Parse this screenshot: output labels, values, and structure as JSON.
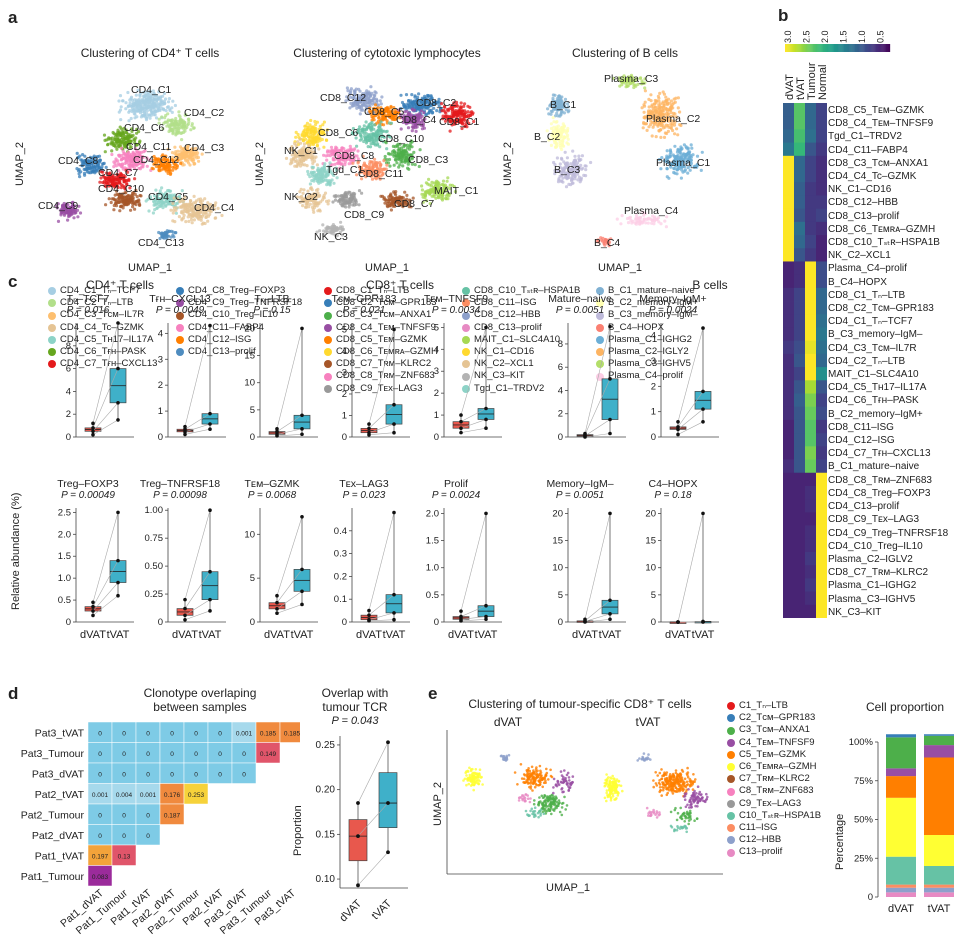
{
  "panels": {
    "a": "a",
    "b": "b",
    "c": "c",
    "d": "d",
    "e": "e"
  },
  "a": {
    "titles": [
      "Clustering of CD4⁺ T cells",
      "Clustering of cytotoxic lymphocytes",
      "Clustering of B cells"
    ],
    "xlabel": "UMAP_1",
    "ylabel": "UMAP_2",
    "cd4_labels": [
      "CD4_C1",
      "CD4_C2",
      "CD4_C6",
      "CD4_C11",
      "CD4_C3",
      "CD4_C8",
      "CD4_C12",
      "CD4_C7",
      "CD4_C10",
      "CD4_C5",
      "CD4_C9",
      "CD4_C4",
      "CD4_C13"
    ],
    "cyto_labels": [
      "CD8_C12",
      "CD8_C2",
      "CD8_C5",
      "CD8_C4",
      "CD8_C1",
      "CD8_C6",
      "CD8_C10",
      "NK_C1",
      "CD8_C8",
      "CD8_C3",
      "Tgd_C1",
      "CD8_C11",
      "NK_C2",
      "CD8_C9",
      "CD8_C7",
      "MAIT_C1",
      "NK_C3"
    ],
    "b_labels": [
      "Plasma_C3",
      "B_C1",
      "B_C2",
      "Plasma_C2",
      "B_C3",
      "Plasma_C1",
      "Plasma_C4",
      "B_C4"
    ],
    "legend_cols": [
      [
        [
          "CD4_C1_Tₙ–TCF7",
          "#a6cee3"
        ],
        [
          "CD4_C2_Tₙ–LTB",
          "#b2df8a"
        ],
        [
          "CD4_C3_Tᴄᴍ–IL7R",
          "#fdbf6f"
        ],
        [
          "CD4_C4_Tc–GZMK",
          "#e5c494"
        ],
        [
          "CD4_C5_Tʜ17–IL17A",
          "#8dd3c7"
        ],
        [
          "CD4_C6_Tғʜ–PASK",
          "#66a61e"
        ],
        [
          "CD4_C7_Tғʜ–CXCL13",
          "#e41a1c"
        ]
      ],
      [
        [
          "CD4_C8_Treg–FOXP3",
          "#377eb8"
        ],
        [
          "CD4_C9_Treg–TNFRSF18",
          "#984ea3"
        ],
        [
          "CD4_C10_Treg–IL10",
          "#a65628"
        ],
        [
          "CD4_C11–FABP4",
          "#f781bf"
        ],
        [
          "CD4_C12–ISG",
          "#ff7f00"
        ],
        [
          "CD4_C13–prolif",
          "#4e8cbf"
        ]
      ],
      [
        [
          "CD8_C1_Tₙ–LTB",
          "#e41a1c"
        ],
        [
          "CD8_C2_Tᴄᴍ–GPR183",
          "#377eb8"
        ],
        [
          "CD8_C3_Tᴄᴍ–ANXA1",
          "#4daf4a"
        ],
        [
          "CD8_C4_Tᴇᴍ–TNFSF9",
          "#984ea3"
        ],
        [
          "CD8_C5_Tᴇᴍ–GZMK",
          "#ff7f00"
        ],
        [
          "CD8_C6_Tᴇᴍʀᴀ–GZMH",
          "#ffd92f"
        ],
        [
          "CD8_C7_Tʀᴍ–KLRC2",
          "#a65628"
        ],
        [
          "CD8_C8_Tʀᴍ–ZNF683",
          "#f781bf"
        ],
        [
          "CD8_C9_Tᴇx–LAG3",
          "#999999"
        ]
      ],
      [
        [
          "CD8_C10_Tₛₜʀ–HSPA1B",
          "#66c2a5"
        ],
        [
          "CD8_C11–ISG",
          "#fc8d62"
        ],
        [
          "CD8_C12–HBB",
          "#8da0cb"
        ],
        [
          "CD8_C13–prolif",
          "#e78ac3"
        ],
        [
          "MAIT_C1–SLC4A10",
          "#a6d854"
        ],
        [
          "NK_C1–CD16",
          "#ffd92f"
        ],
        [
          "NK_C2–XCL1",
          "#e5c494"
        ],
        [
          "NK_C3–KIT",
          "#b3b3b3"
        ],
        [
          "Tgd_C1–TRDV2",
          "#8dd3c7"
        ]
      ],
      [
        [
          "B_C1_mature–naive",
          "#80b1d3"
        ],
        [
          "B_C2_memory–IgM+",
          "#ffffb3"
        ],
        [
          "B_C3_memory–IgM–",
          "#bebada"
        ],
        [
          "B_C4–HOPX",
          "#fb8072"
        ],
        [
          "Plasma_C1–IGHG2",
          "#6baed6"
        ],
        [
          "Plasma_C2–IGLY2",
          "#fdb462"
        ],
        [
          "Plasma_C3–IGHV5",
          "#b3de69"
        ],
        [
          "Plasma_C4–prolif",
          "#fccde5"
        ]
      ]
    ]
  },
  "b": {
    "colorbar_ticks": [
      "3.0",
      "2.5",
      "2.0",
      "1.5",
      "1.0",
      "0.5"
    ],
    "columns": [
      "dVAT",
      "tVAT",
      "Tumour",
      "Normal"
    ],
    "rows": [
      "CD8_C5_Tᴇᴍ–GZMK",
      "CD8_C4_Tᴇᴍ–TNFSF9",
      "Tgd_C1–TRDV2",
      "CD4_C11–FABP4",
      "CD8_C3_Tᴄᴍ–ANXA1",
      "CD4_C4_Tc–GZMK",
      "NK_C1–CD16",
      "CD8_C12–HBB",
      "CD8_C13–prolif",
      "CD8_C6_Tᴇᴍʀᴀ–GZMH",
      "CD8_C10_Tₛₜʀ–HSPA1B",
      "NK_C2–XCL1",
      "Plasma_C4–prolif",
      "B_C4–HOPX",
      "CD8_C1_Tₙ–LTB",
      "CD8_C2_Tᴄᴍ–GPR183",
      "CD4_C1_Tₙ–TCF7",
      "B_C3_memory–IgM–",
      "CD4_C3_Tᴄᴍ–IL7R",
      "CD4_C2_Tₙ–LTB",
      "MAIT_C1–SLC4A10",
      "CD4_C5_Tʜ17–IL17A",
      "CD4_C6_Tғʜ–PASK",
      "B_C2_memory–IgM+",
      "CD8_C11–ISG",
      "CD4_C12–ISG",
      "CD4_C7_Tғʜ–CXCL13",
      "B_C1_mature–naive",
      "CD8_C8_Tʀᴍ–ZNF683",
      "CD4_C8_Treg–FOXP3",
      "CD4_C13–prolif",
      "CD8_C9_Tᴇx–LAG3",
      "CD4_C9_Treg–TNFRSF18",
      "CD4_C10_Treg–IL10",
      "Plasma_C2–IGLV2",
      "CD8_C7_Tʀᴍ–KLRC2",
      "Plasma_C1–IGHG2",
      "Plasma_C3–IGHV5",
      "NK_C3–KIT"
    ],
    "values": [
      [
        0.9,
        2.2,
        1.0,
        0.6
      ],
      [
        0.9,
        2.2,
        1.0,
        0.6
      ],
      [
        1.0,
        2.1,
        1.1,
        0.6
      ],
      [
        1.2,
        2.0,
        0.8,
        0.5
      ],
      [
        3.0,
        1.0,
        0.6,
        0.4
      ],
      [
        3.0,
        1.0,
        0.6,
        0.4
      ],
      [
        3.0,
        0.9,
        0.5,
        0.4
      ],
      [
        3.0,
        0.9,
        0.5,
        0.5
      ],
      [
        3.0,
        0.8,
        0.5,
        0.6
      ],
      [
        3.0,
        1.1,
        0.5,
        0.4
      ],
      [
        3.0,
        1.0,
        0.6,
        0.3
      ],
      [
        3.0,
        0.8,
        0.5,
        0.3
      ],
      [
        0.3,
        0.4,
        3.0,
        0.7
      ],
      [
        0.3,
        0.4,
        3.0,
        0.7
      ],
      [
        0.4,
        0.6,
        3.0,
        1.0
      ],
      [
        0.4,
        0.6,
        3.0,
        1.0
      ],
      [
        0.4,
        0.6,
        3.0,
        1.1
      ],
      [
        0.4,
        0.6,
        3.0,
        1.2
      ],
      [
        0.5,
        0.7,
        2.9,
        1.1
      ],
      [
        0.4,
        0.8,
        3.0,
        1.0
      ],
      [
        0.4,
        0.6,
        3.0,
        1.5
      ],
      [
        0.4,
        0.8,
        2.6,
        0.8
      ],
      [
        0.4,
        0.9,
        2.4,
        0.6
      ],
      [
        0.4,
        0.8,
        2.3,
        0.7
      ],
      [
        0.3,
        0.8,
        2.2,
        0.5
      ],
      [
        0.3,
        0.8,
        2.2,
        0.6
      ],
      [
        0.3,
        0.8,
        2.4,
        0.5
      ],
      [
        0.4,
        0.8,
        2.3,
        0.6
      ],
      [
        0.3,
        0.3,
        0.3,
        3.0
      ],
      [
        0.3,
        0.3,
        0.4,
        3.0
      ],
      [
        0.3,
        0.3,
        0.4,
        3.0
      ],
      [
        0.3,
        0.3,
        0.3,
        3.0
      ],
      [
        0.3,
        0.3,
        0.4,
        3.0
      ],
      [
        0.3,
        0.3,
        0.4,
        3.0
      ],
      [
        0.3,
        0.3,
        0.5,
        3.0
      ],
      [
        0.3,
        0.3,
        0.4,
        3.0
      ],
      [
        0.3,
        0.3,
        0.5,
        3.0
      ],
      [
        0.3,
        0.3,
        0.4,
        3.0
      ],
      [
        0.3,
        0.3,
        0.3,
        3.0
      ]
    ]
  },
  "c": {
    "ylabel": "Relative abundance (%)",
    "xcats": [
      "dVAT",
      "tVAT"
    ],
    "group_titles": [
      "CD4⁺ T cells",
      "CD8⁺ T cells",
      "B cells"
    ],
    "plots": [
      {
        "title": "Tₙ–TCF7",
        "p": "P = 0.016",
        "yticks": [
          "0",
          "2",
          "4",
          "6",
          "8"
        ],
        "ymax": 10,
        "dvat": [
          0.2,
          0.5,
          0.8,
          1.2
        ],
        "tvat": [
          1.5,
          3,
          6,
          10
        ]
      },
      {
        "title": "Tғʜ–CXCL13",
        "p": "P = 0.0049",
        "yticks": [
          "0",
          "1",
          "2",
          "3",
          "4"
        ],
        "ymax": 4.4,
        "dvat": [
          0.1,
          0.2,
          0.3,
          0.4
        ],
        "tvat": [
          0.3,
          0.5,
          0.9,
          4.3
        ]
      },
      {
        "title": "Tₙ–LTB",
        "p": "P = 0.15",
        "yticks": [
          "0",
          "5",
          "10",
          "15",
          "20"
        ],
        "ymax": 21,
        "dvat": [
          0.2,
          0.5,
          1,
          1.5
        ],
        "tvat": [
          0.5,
          1.5,
          4,
          20
        ]
      },
      {
        "title": "Tᴄᴍ–GPR183",
        "p": "P = 0.021",
        "yticks": [
          "0",
          "1",
          "2",
          "3",
          "4",
          "5"
        ],
        "ymax": 5.3,
        "dvat": [
          0.1,
          0.2,
          0.4,
          0.6
        ],
        "tvat": [
          0.2,
          0.6,
          1.5,
          5
        ]
      },
      {
        "title": "Tᴇᴍ–TNFSF9",
        "p": "P = 0.0034",
        "yticks": [
          "0",
          "1",
          "2",
          "3",
          "4",
          "5"
        ],
        "ymax": 5.2,
        "dvat": [
          0.2,
          0.4,
          0.7,
          1
        ],
        "tvat": [
          0.4,
          0.8,
          1.3,
          5
        ]
      },
      {
        "title": "Mature–naive",
        "p": "P = 0.0051",
        "yticks": [
          "0",
          "2",
          "4",
          "6",
          "8"
        ],
        "ymax": 9.8,
        "dvat": [
          0,
          0.1,
          0.2,
          0.3
        ],
        "tvat": [
          0.3,
          1.5,
          5,
          9.5
        ]
      },
      {
        "title": "Memory–IgM+",
        "p": "P = 0.0024",
        "yticks": [
          "0",
          "1",
          "2",
          "3",
          "4"
        ],
        "ymax": 4.5,
        "dvat": [
          0.1,
          0.3,
          0.4,
          0.6
        ],
        "tvat": [
          0.6,
          1.1,
          1.8,
          4.3
        ]
      },
      {
        "title": "Treg–FOXP3",
        "p": "P = 0.00049",
        "yticks": [
          "0",
          "0.5",
          "1.0",
          "1.5",
          "2.0",
          "2.5"
        ],
        "ymax": 2.6,
        "dvat": [
          0.15,
          0.25,
          0.35,
          0.45
        ],
        "tvat": [
          0.6,
          0.9,
          1.4,
          2.5
        ]
      },
      {
        "title": "Treg–TNFRSF18",
        "p": "P = 0.00098",
        "yticks": [
          "0",
          "0.25",
          "0.50",
          "0.75",
          "1.00"
        ],
        "ymax": 1.02,
        "dvat": [
          0.02,
          0.06,
          0.12,
          0.2
        ],
        "tvat": [
          0.1,
          0.2,
          0.45,
          1.0
        ]
      },
      {
        "title": "Tᴇᴍ–GZMK",
        "p": "P = 0.0068",
        "yticks": [
          "0",
          "5",
          "10"
        ],
        "ymax": 13,
        "dvat": [
          1,
          1.5,
          2.2,
          3
        ],
        "tvat": [
          2,
          3.5,
          6,
          12
        ]
      },
      {
        "title": "Tᴇx–LAG3",
        "p": "P = 0.023",
        "yticks": [
          "0",
          "0.1",
          "0.2",
          "0.3",
          "0.4"
        ],
        "ymax": 0.5,
        "dvat": [
          0.005,
          0.01,
          0.03,
          0.05
        ],
        "tvat": [
          0.01,
          0.04,
          0.12,
          0.48
        ]
      },
      {
        "title": "Prolif",
        "p": "P = 0.0024",
        "yticks": [
          "0",
          "0.5",
          "1.0",
          "1.5",
          "2.0"
        ],
        "ymax": 2.1,
        "dvat": [
          0.02,
          0.05,
          0.1,
          0.2
        ],
        "tvat": [
          0.05,
          0.1,
          0.3,
          2
        ]
      },
      {
        "title": "Memory–IgM–",
        "p": "P = 0.0051",
        "yticks": [
          "0",
          "5",
          "10",
          "15",
          "20"
        ],
        "ymax": 21,
        "dvat": [
          0,
          0.1,
          0.2,
          0.5
        ],
        "tvat": [
          0.5,
          1.5,
          4,
          20
        ]
      },
      {
        "title": "C4–HOPX",
        "p": "P = 0.18",
        "yticks": [
          "0",
          "5",
          "10",
          "15",
          "20"
        ],
        "ymax": 21,
        "dvat": [
          0,
          0,
          0,
          0
        ],
        "tvat": [
          0,
          0,
          0.1,
          20
        ]
      }
    ]
  },
  "d": {
    "title_line1": "Clonotype overlaping",
    "title_line2": "between samples",
    "rows": [
      "Pat3_tVAT",
      "Pat3_Tumour",
      "Pat3_dVAT",
      "Pat2_tVAT",
      "Pat2_Tumour",
      "Pat2_dVAT",
      "Pat1_tVAT",
      "Pat1_Tumour"
    ],
    "cols": [
      "Pat1_dVAT",
      "Pat1_Tumour",
      "Pat1_tVAT",
      "Pat2_dVAT",
      "Pat2_Tumour",
      "Pat2_tVAT",
      "Pat3_dVAT",
      "Pat3_Tumour",
      "Pat3_tVAT"
    ],
    "cells": [
      [
        "0",
        "0",
        "0",
        "0",
        "0",
        "0",
        "0.001",
        "0.185",
        "0.185"
      ],
      [
        "0",
        "0",
        "0",
        "0",
        "0",
        "0",
        "0",
        "0.149"
      ],
      [
        "0",
        "0",
        "0",
        "0",
        "0",
        "0",
        "0"
      ],
      [
        "0.001",
        "0.004",
        "0.001",
        "0.176",
        "0.253"
      ],
      [
        "0",
        "0",
        "0",
        "0.187"
      ],
      [
        "0",
        "0",
        "0"
      ],
      [
        "0.197",
        "0.13"
      ],
      [
        "0.083"
      ]
    ],
    "box": {
      "title_line1": "Overlap with",
      "title_line2": "tumour TCR",
      "p": "P = 0.043",
      "ylabel": "Proportion",
      "yticks": [
        "0.10",
        "0.15",
        "0.20",
        "0.25"
      ],
      "ymin": 0.09,
      "ymax": 0.26,
      "xcats": [
        "dVAT",
        "tVAT"
      ],
      "dvat": [
        0.093,
        0.148,
        0.185
      ],
      "tvat": [
        0.13,
        0.185,
        0.253
      ]
    }
  },
  "e": {
    "title": "Clustering of tumour-specific CD8⁺ T cells",
    "sub": [
      "dVAT",
      "tVAT"
    ],
    "xlabel": "UMAP_1",
    "ylabel": "UMAP_2",
    "legend": [
      [
        "C1_Tₙ–LTB",
        "#e41a1c"
      ],
      [
        "C2_Tᴄᴍ–GPR183",
        "#377eb8"
      ],
      [
        "C3_Tᴄᴍ–ANXA1",
        "#4daf4a"
      ],
      [
        "C4_Tᴇᴍ–TNFSF9",
        "#984ea3"
      ],
      [
        "C5_Tᴇᴍ–GZMK",
        "#ff7f00"
      ],
      [
        "C6_Tᴇᴍʀᴀ–GZMH",
        "#ffff33"
      ],
      [
        "C7_Tʀᴍ–KLRC2",
        "#a65628"
      ],
      [
        "C8_Tʀᴍ–ZNF683",
        "#f781bf"
      ],
      [
        "C9_Tᴇx–LAG3",
        "#999999"
      ],
      [
        "C10_Tₛₜʀ–HSPA1B",
        "#66c2a5"
      ],
      [
        "C11–ISG",
        "#fc8d62"
      ],
      [
        "C12–HBB",
        "#8da0cb"
      ],
      [
        "C13–prolif",
        "#e78ac3"
      ]
    ],
    "bar_title": "Cell proportion",
    "bar_ylabel": "Percentage",
    "bar_yticks": [
      "0",
      "25%",
      "50%",
      "75%",
      "100%"
    ],
    "bar_xcats": [
      "dVAT",
      "tVAT"
    ],
    "stack_colors": [
      "#e78ac3",
      "#8da0cb",
      "#fc8d62",
      "#66c2a5",
      "#ffff33",
      "#ff7f00",
      "#984ea3",
      "#4daf4a",
      "#377eb8"
    ],
    "stack_dvat": [
      3,
      3,
      2,
      18,
      38,
      14,
      5,
      20,
      2
    ],
    "stack_tvat": [
      3,
      3,
      2,
      12,
      20,
      50,
      8,
      6,
      1
    ]
  }
}
